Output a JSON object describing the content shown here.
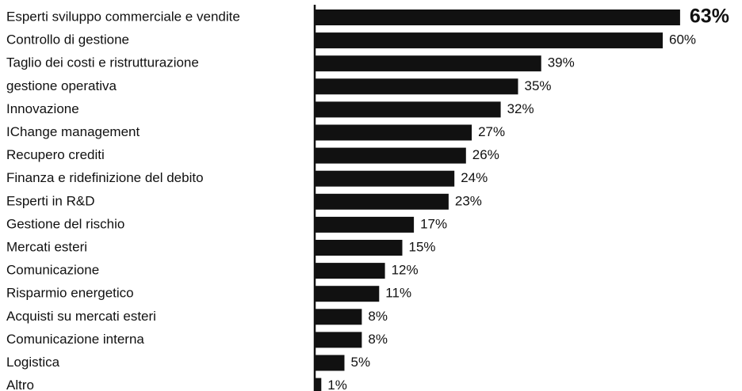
{
  "chart_data": {
    "type": "bar",
    "orientation": "horizontal",
    "color": "#111111",
    "categories": [
      "Esperti sviluppo commerciale e vendite",
      "Controllo di gestione",
      "Taglio dei costi e ristrutturazione",
      "gestione operativa",
      "Innovazione",
      "IChange management",
      "Recupero crediti",
      "Finanza e ridefinizione del debito",
      "Esperti in R&D",
      "Gestione del rischio",
      "Mercati esteri",
      "Comunicazione",
      "Risparmio energetico",
      "Acquisti su mercati esteri",
      "Comunicazione interna",
      "Logistica",
      "Altro"
    ],
    "values": [
      63,
      60,
      39,
      35,
      32,
      27,
      26,
      24,
      23,
      17,
      15,
      12,
      11,
      8,
      8,
      5,
      1
    ],
    "value_labels": [
      "63%",
      "60%",
      "39%",
      "35%",
      "32%",
      "27%",
      "26%",
      "24%",
      "23%",
      "17%",
      "15%",
      "12%",
      "11%",
      "8%",
      "8%",
      "5%",
      "1%"
    ]
  }
}
